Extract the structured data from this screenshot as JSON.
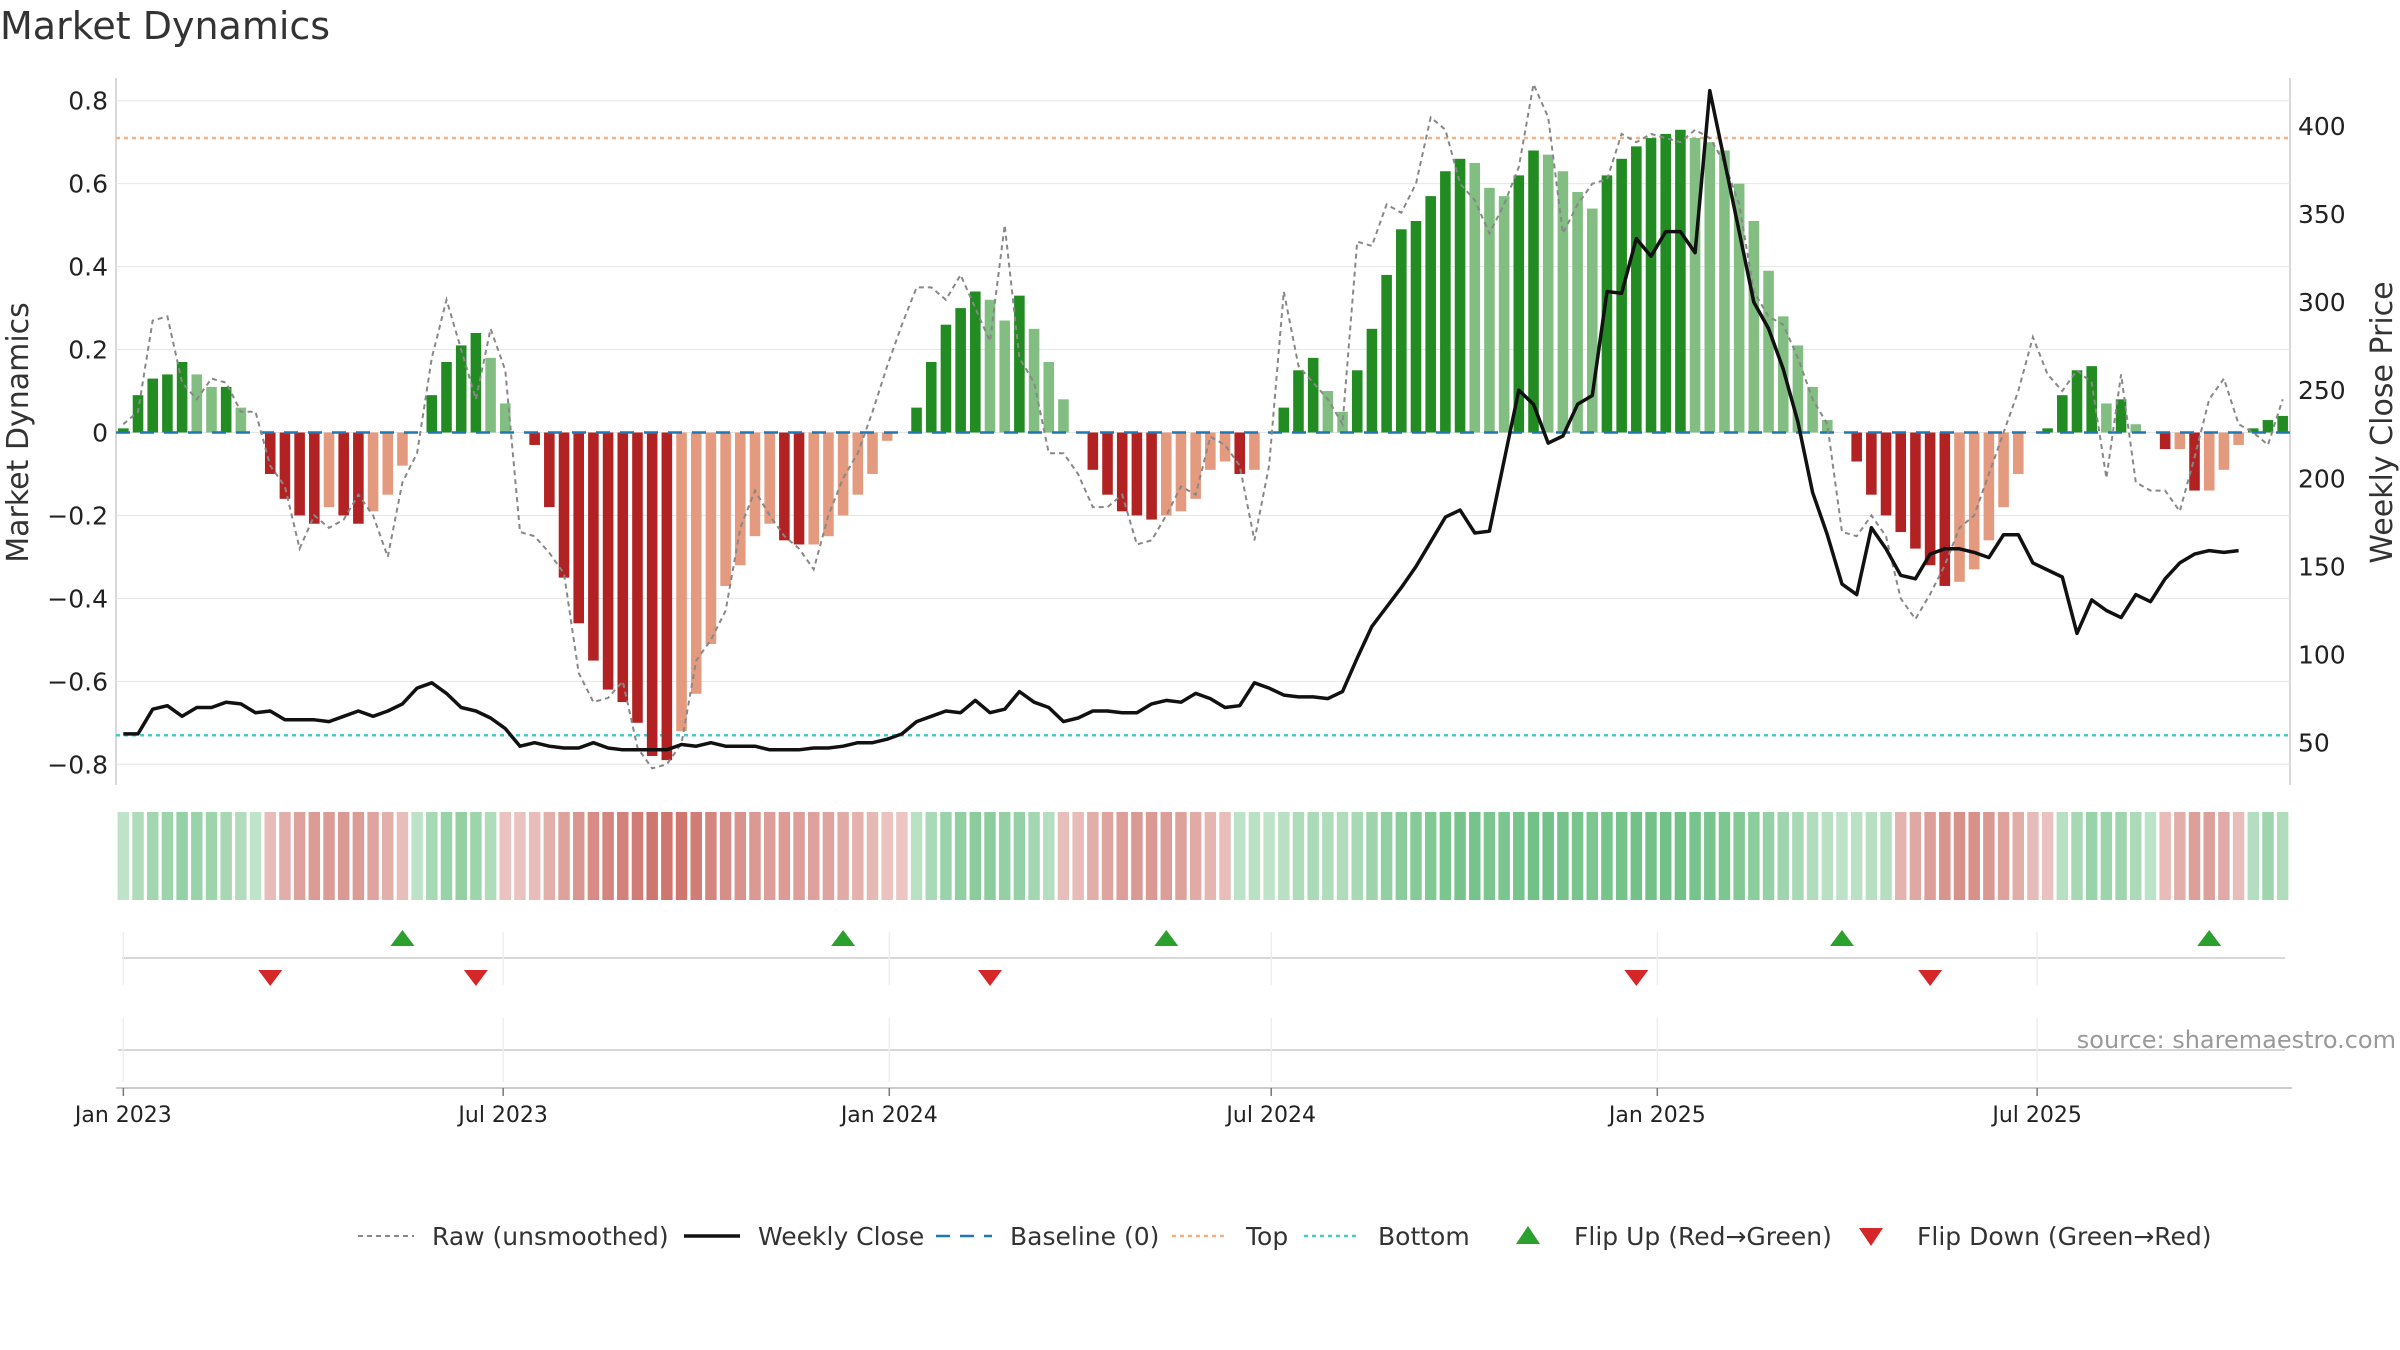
{
  "title": "Market Dynamics",
  "source_note": "source: sharemaestro.com",
  "colors": {
    "green_strong": "#228B22",
    "green_light": "#82BE82",
    "red_strong": "#B22222",
    "red_light": "#E39A7E",
    "raw_line": "#888888",
    "close_line": "#111111",
    "baseline": "#1F77B4",
    "top": "#F4B183",
    "bottom": "#48C9C9",
    "flip_up": "#2CA02C",
    "flip_down": "#D62728"
  },
  "chart_data": {
    "type": "bar",
    "x_start": "2023-01-01",
    "week_labels_note": "weekly series Jan 2023 - Sep 2025",
    "xticks": [
      "Jan 2023",
      "Jul 2023",
      "Jan 2024",
      "Jul 2024",
      "Jan 2025",
      "Jul 2025"
    ],
    "xtick_dates": [
      "2023-01-01",
      "2023-07-01",
      "2024-01-01",
      "2024-07-01",
      "2025-01-01",
      "2025-07-01"
    ],
    "ylabel_left": "Market Dynamics",
    "ylabel_right": "Weekly Close Price",
    "ylim_left": [
      -0.85,
      0.85
    ],
    "ylim_right": [
      26,
      426
    ],
    "yticks_left": [
      "0.8",
      "0.6",
      "0.4",
      "0.2",
      "0",
      "−0.2",
      "−0.4",
      "−0.6",
      "−0.8"
    ],
    "yticks_left_values": [
      0.8,
      0.6,
      0.4,
      0.2,
      0,
      -0.2,
      -0.4,
      -0.6,
      -0.8
    ],
    "yticks_right": [
      "400",
      "350",
      "300",
      "250",
      "200",
      "150",
      "100",
      "50"
    ],
    "yticks_right_values": [
      400,
      350,
      300,
      250,
      200,
      150,
      100,
      50
    ],
    "top_level": 0.71,
    "bottom_level": -0.73,
    "baseline": 0,
    "grid": true,
    "smoothed_values": [
      0.01,
      0.09,
      0.13,
      0.14,
      0.17,
      0.14,
      0.11,
      0.11,
      0.06,
      0,
      -0.1,
      -0.16,
      -0.2,
      -0.22,
      -0.18,
      -0.2,
      -0.22,
      -0.19,
      -0.15,
      -0.08,
      0,
      0.09,
      0.17,
      0.21,
      0.24,
      0.18,
      0.07,
      0,
      -0.03,
      -0.18,
      -0.35,
      -0.46,
      -0.55,
      -0.62,
      -0.65,
      -0.7,
      -0.78,
      -0.79,
      -0.72,
      -0.63,
      -0.51,
      -0.37,
      -0.32,
      -0.25,
      -0.22,
      -0.26,
      -0.27,
      -0.27,
      -0.25,
      -0.2,
      -0.15,
      -0.1,
      -0.02,
      0,
      0.06,
      0.17,
      0.26,
      0.3,
      0.34,
      0.32,
      0.27,
      0.33,
      0.25,
      0.17,
      0.08,
      0,
      -0.09,
      -0.15,
      -0.19,
      -0.2,
      -0.21,
      -0.2,
      -0.19,
      -0.16,
      -0.09,
      -0.07,
      -0.1,
      -0.09,
      0,
      0.06,
      0.15,
      0.18,
      0.1,
      0.05,
      0.15,
      0.25,
      0.38,
      0.49,
      0.51,
      0.57,
      0.63,
      0.66,
      0.65,
      0.59,
      0.57,
      0.62,
      0.68,
      0.67,
      0.63,
      0.58,
      0.54,
      0.62,
      0.66,
      0.69,
      0.71,
      0.72,
      0.73,
      0.71,
      0.7,
      0.68,
      0.6,
      0.51,
      0.39,
      0.28,
      0.21,
      0.11,
      0.03,
      0,
      -0.07,
      -0.15,
      -0.2,
      -0.24,
      -0.28,
      -0.32,
      -0.37,
      -0.36,
      -0.33,
      -0.26,
      -0.18,
      -0.1,
      0,
      0.01,
      0.09,
      0.15,
      0.16,
      0.07,
      0.08,
      0.02,
      0,
      -0.04,
      -0.04,
      -0.14,
      -0.14,
      -0.09,
      -0.03,
      0.01,
      0.03,
      0.04
    ],
    "raw_values": [
      0.02,
      0.05,
      0.27,
      0.28,
      0.12,
      0.08,
      0.13,
      0.12,
      0.05,
      0.05,
      -0.08,
      -0.13,
      -0.28,
      -0.2,
      -0.23,
      -0.21,
      -0.15,
      -0.2,
      -0.3,
      -0.12,
      -0.05,
      0.18,
      0.32,
      0.2,
      0.08,
      0.25,
      0.15,
      -0.24,
      -0.25,
      -0.29,
      -0.34,
      -0.58,
      -0.65,
      -0.64,
      -0.6,
      -0.76,
      -0.81,
      -0.8,
      -0.75,
      -0.55,
      -0.5,
      -0.43,
      -0.23,
      -0.14,
      -0.2,
      -0.25,
      -0.28,
      -0.33,
      -0.2,
      -0.11,
      -0.05,
      0.05,
      0.16,
      0.26,
      0.35,
      0.35,
      0.32,
      0.38,
      0.3,
      0.22,
      0.5,
      0.18,
      0.12,
      -0.05,
      -0.05,
      -0.1,
      -0.18,
      -0.18,
      -0.15,
      -0.27,
      -0.26,
      -0.2,
      -0.13,
      -0.15,
      -0.01,
      -0.03,
      -0.08,
      -0.26,
      -0.08,
      0.34,
      0.16,
      0.12,
      0.08,
      0.02,
      0.46,
      0.45,
      0.55,
      0.53,
      0.6,
      0.76,
      0.73,
      0.6,
      0.56,
      0.48,
      0.55,
      0.64,
      0.84,
      0.76,
      0.48,
      0.55,
      0.6,
      0.61,
      0.72,
      0.7,
      0.72,
      0.71,
      0.7,
      0.73,
      0.71,
      0.65,
      0.55,
      0.34,
      0.28,
      0.26,
      0.18,
      0.08,
      0.02,
      -0.24,
      -0.25,
      -0.2,
      -0.25,
      -0.4,
      -0.45,
      -0.39,
      -0.32,
      -0.23,
      -0.2,
      -0.1,
      0,
      0.1,
      0.23,
      0.14,
      0.1,
      0.15,
      0.12,
      -0.11,
      0.14,
      -0.12,
      -0.14,
      -0.14,
      -0.19,
      -0.06,
      0.08,
      0.13,
      0.02,
      0,
      -0.03,
      0.08
    ],
    "weekly_close": [
      55,
      55,
      69,
      71,
      65,
      70,
      70,
      73,
      72,
      67,
      68,
      63,
      63,
      63,
      62,
      65,
      68,
      65,
      68,
      72,
      81,
      84,
      78,
      70,
      68,
      64,
      58,
      48,
      50,
      48,
      47,
      47,
      50,
      47,
      46,
      46,
      46,
      46,
      49,
      48,
      50,
      48,
      48,
      48,
      46,
      46,
      46,
      47,
      47,
      48,
      50,
      50,
      52,
      55,
      62,
      65,
      68,
      67,
      74,
      67,
      69,
      79,
      73,
      70,
      62,
      64,
      68,
      68,
      67,
      67,
      72,
      74,
      73,
      78,
      75,
      70,
      71,
      84,
      81,
      77,
      76,
      76,
      75,
      79,
      98,
      116,
      127,
      138,
      150,
      164,
      178,
      182,
      169,
      170,
      210,
      250,
      242,
      220,
      224,
      242,
      247,
      306,
      305,
      336,
      326,
      340,
      340,
      328,
      420,
      380,
      340,
      300,
      285,
      262,
      232,
      192,
      168,
      140,
      134,
      172,
      160,
      145,
      143,
      157,
      160,
      160,
      158,
      155,
      168,
      168,
      152,
      148,
      144,
      112,
      131,
      125,
      121,
      134,
      130,
      143,
      152,
      157,
      159,
      158,
      159
    ],
    "regime_strip": [
      "g",
      "g",
      "g",
      "g",
      "g",
      "g",
      "g",
      "g",
      "g",
      "g",
      "r",
      "r",
      "r",
      "r",
      "r",
      "r",
      "r",
      "r",
      "r",
      "r",
      "g",
      "g",
      "g",
      "g",
      "g",
      "g",
      "r",
      "r",
      "r",
      "r",
      "r",
      "r",
      "r",
      "r",
      "r",
      "r",
      "r",
      "r",
      "r",
      "r",
      "r",
      "r",
      "r",
      "r",
      "r",
      "r",
      "r",
      "r",
      "r",
      "r",
      "r",
      "r",
      "r",
      "r",
      "g",
      "g",
      "g",
      "g",
      "g",
      "g",
      "g",
      "g",
      "g",
      "g",
      "r",
      "r",
      "r",
      "r",
      "r",
      "r",
      "r",
      "r",
      "r",
      "r",
      "r",
      "r",
      "g",
      "g",
      "g",
      "g",
      "g",
      "g",
      "g",
      "g",
      "g",
      "g",
      "g",
      "g",
      "g",
      "g",
      "g",
      "g",
      "g",
      "g",
      "g",
      "g",
      "g",
      "g",
      "g",
      "g",
      "g",
      "g",
      "g",
      "g",
      "g",
      "g",
      "g",
      "g",
      "g",
      "g",
      "g",
      "g",
      "g",
      "g",
      "g",
      "g",
      "g",
      "g",
      "g",
      "g",
      "g",
      "r",
      "r",
      "r",
      "r",
      "r",
      "r",
      "r",
      "r",
      "r",
      "r",
      "r",
      "g",
      "g",
      "g",
      "g",
      "g",
      "g",
      "g",
      "r",
      "r",
      "r",
      "r",
      "r",
      "r",
      "g",
      "g",
      "g"
    ],
    "flip_up_weeks": [
      19,
      49,
      71,
      117,
      142
    ],
    "flip_down_weeks": [
      10,
      24,
      59,
      103,
      123
    ],
    "legend": [
      {
        "label": "Raw (unsmoothed)",
        "style": "raw"
      },
      {
        "label": "Weekly Close",
        "style": "close"
      },
      {
        "label": "Baseline (0)",
        "style": "baseline"
      },
      {
        "label": "Top",
        "style": "top"
      },
      {
        "label": "Bottom",
        "style": "bottom"
      },
      {
        "label": "Flip Up (Red→Green)",
        "style": "up"
      },
      {
        "label": "Flip Down (Green→Red)",
        "style": "down"
      }
    ],
    "legend_position": "bottom"
  }
}
